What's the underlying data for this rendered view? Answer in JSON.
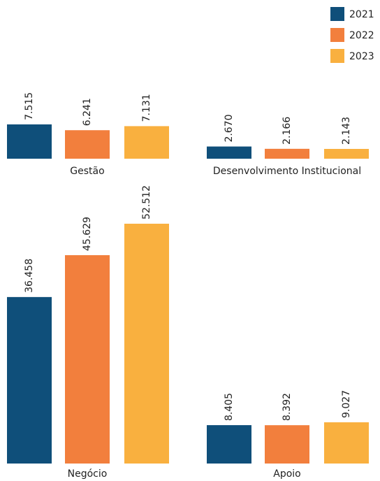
{
  "chart_data": {
    "type": "bar",
    "categories": [
      "Gestão",
      "Desenvolvimento Institucional",
      "Negócio",
      "Apoio"
    ],
    "series": [
      {
        "name": "2021",
        "color": "#0f4f7a",
        "values": [
          7515,
          2670,
          36458,
          8405
        ],
        "value_labels": [
          "7.515",
          "2.670",
          "36.458",
          "8.405"
        ]
      },
      {
        "name": "2022",
        "color": "#f27f3d",
        "values": [
          6241,
          2166,
          45629,
          8392
        ],
        "value_labels": [
          "6.241",
          "2.166",
          "45.629",
          "8.392"
        ]
      },
      {
        "name": "2023",
        "color": "#f9b03f",
        "values": [
          7131,
          2143,
          52512,
          9027
        ],
        "value_labels": [
          "7.131",
          "2.143",
          "52.512",
          "9.027"
        ]
      }
    ],
    "legend": "top-right"
  }
}
